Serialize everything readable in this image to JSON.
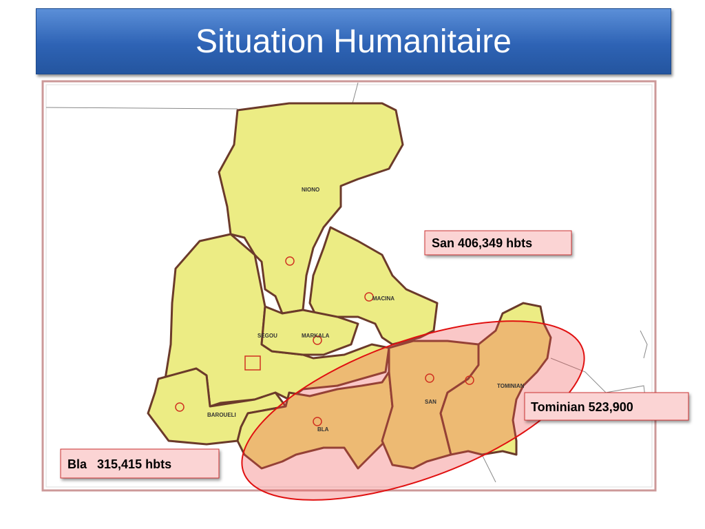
{
  "header": {
    "title": "Situation Humanitaire"
  },
  "map": {
    "districts": [
      "NIONO",
      "MACINA",
      "SEGOU",
      "MARKALA",
      "BAROUELI",
      "BLA",
      "SAN",
      "TOMINIAN"
    ]
  },
  "callouts": [
    "San 406,349 hbts",
    "Tominian 523,900",
    "Bla   315,415 hbts"
  ]
}
